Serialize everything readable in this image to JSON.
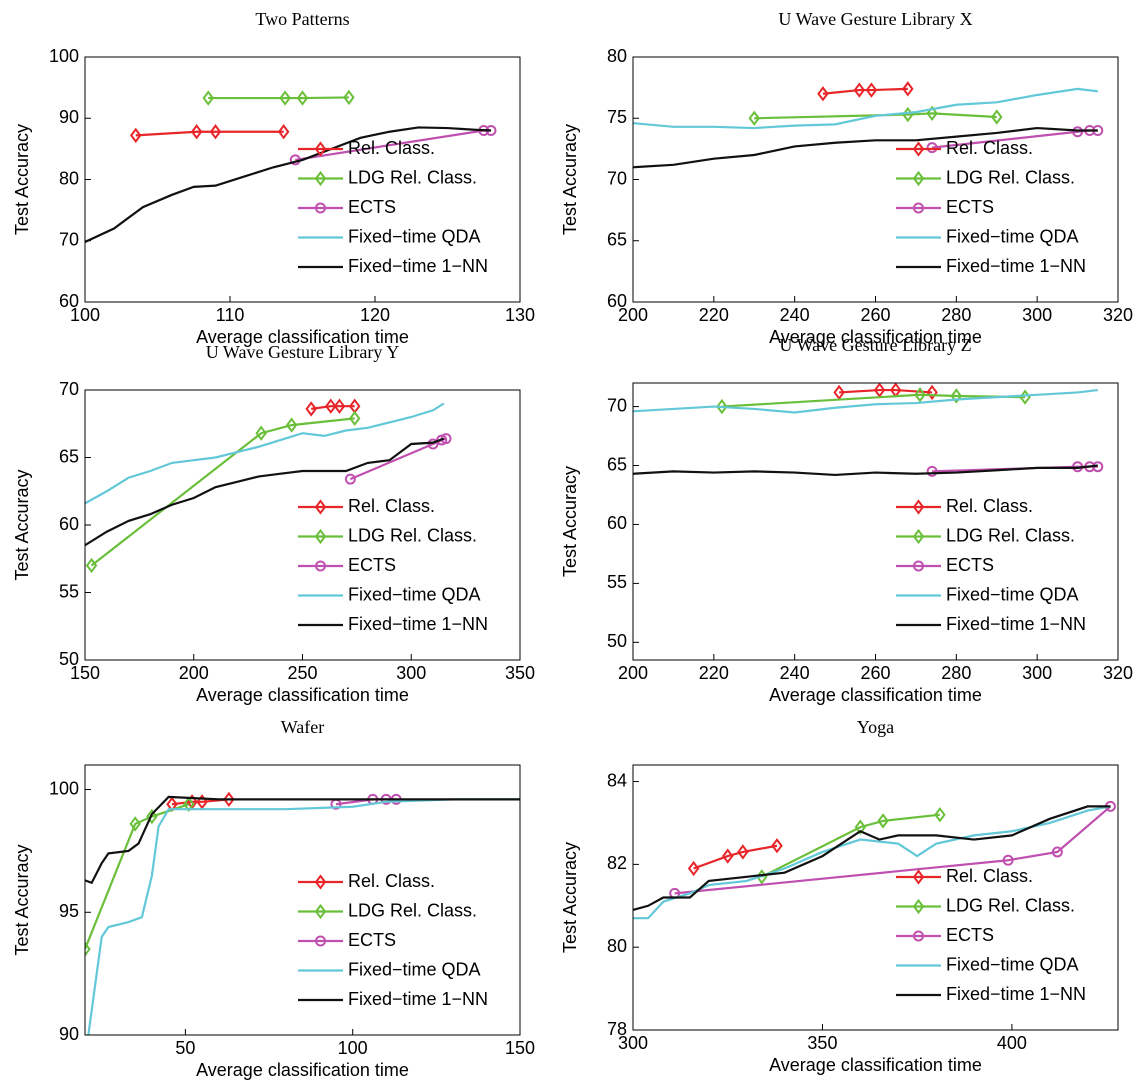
{
  "chart_data": [
    {
      "type": "line",
      "title": "Two Patterns",
      "x_label": "Average classification time",
      "y_label": "Test Accuracy",
      "xlim": [
        100,
        130
      ],
      "ylim": [
        60,
        100
      ],
      "xticks": [
        100,
        110,
        120,
        130
      ],
      "yticks": [
        60,
        70,
        80,
        90,
        100
      ],
      "legend": "lower right",
      "series": [
        {
          "name": "Rel. Class.",
          "color": "#e8262a",
          "marker": "diamond",
          "x": [
            103.5,
            107.7,
            109,
            113.7
          ],
          "values": [
            87.2,
            87.8,
            87.8,
            87.8
          ]
        },
        {
          "name": "LDG Rel. Class.",
          "color": "#6abf3a",
          "marker": "diamond",
          "x": [
            108.5,
            113.8,
            115,
            118.2
          ],
          "values": [
            93.3,
            93.3,
            93.3,
            93.4
          ]
        },
        {
          "name": "ECTS",
          "color": "#c050b0",
          "marker": "circle",
          "x": [
            114.5,
            127.5,
            128
          ],
          "values": [
            83.2,
            88,
            88
          ]
        },
        {
          "name": "Fixed−time QDA",
          "color": "#62c8d8",
          "x": [],
          "values": []
        },
        {
          "name": "Fixed−time 1−NN",
          "color": "#111111",
          "x": [
            100,
            102,
            104,
            106,
            107.5,
            109,
            111,
            113,
            115,
            117,
            119,
            121,
            123,
            125,
            127,
            128
          ],
          "values": [
            69.8,
            72,
            75.5,
            77.5,
            78.8,
            79,
            80.5,
            82,
            83.2,
            85,
            86.8,
            87.8,
            88.5,
            88.4,
            88.1,
            88
          ]
        }
      ]
    },
    {
      "type": "line",
      "title": "U Wave Gesture Library X",
      "x_label": "Average classification time",
      "y_label": "Test Accuracy",
      "xlim": [
        200,
        320
      ],
      "ylim": [
        60,
        80
      ],
      "xticks": [
        200,
        220,
        240,
        260,
        280,
        300,
        320
      ],
      "yticks": [
        60,
        65,
        70,
        75,
        80
      ],
      "legend": "lower right",
      "series": [
        {
          "name": "Rel. Class.",
          "color": "#e8262a",
          "marker": "diamond",
          "x": [
            247,
            256,
            259,
            268
          ],
          "values": [
            77,
            77.3,
            77.3,
            77.4
          ]
        },
        {
          "name": "LDG Rel. Class.",
          "color": "#6abf3a",
          "marker": "diamond",
          "x": [
            230,
            268,
            274,
            290
          ],
          "values": [
            75,
            75.3,
            75.4,
            75.1
          ]
        },
        {
          "name": "ECTS",
          "color": "#c050b0",
          "marker": "circle",
          "x": [
            274,
            310,
            313,
            315
          ],
          "values": [
            72.6,
            73.9,
            74,
            74
          ]
        },
        {
          "name": "Fixed−time QDA",
          "color": "#62c8d8",
          "x": [
            200,
            210,
            220,
            230,
            240,
            250,
            260,
            270,
            280,
            290,
            300,
            310,
            315
          ],
          "values": [
            74.6,
            74.3,
            74.3,
            74.2,
            74.4,
            74.5,
            75.2,
            75.5,
            76.1,
            76.3,
            76.9,
            77.4,
            77.2
          ]
        },
        {
          "name": "Fixed−time 1−NN",
          "color": "#111111",
          "x": [
            200,
            210,
            220,
            230,
            240,
            250,
            260,
            270,
            280,
            290,
            300,
            310,
            315
          ],
          "values": [
            71,
            71.2,
            71.7,
            72,
            72.7,
            73,
            73.2,
            73.2,
            73.5,
            73.8,
            74.2,
            74,
            74
          ]
        }
      ]
    },
    {
      "type": "line",
      "title": "U Wave Gesture Library Y",
      "x_label": "Average classification time",
      "y_label": "Test Accuracy",
      "xlim": [
        150,
        350
      ],
      "ylim": [
        50,
        70
      ],
      "xticks": [
        150,
        200,
        250,
        300,
        350
      ],
      "yticks": [
        50,
        55,
        60,
        65,
        70
      ],
      "legend": "lower right",
      "series": [
        {
          "name": "Rel. Class.",
          "color": "#e8262a",
          "marker": "diamond",
          "x": [
            254,
            263,
            267,
            274
          ],
          "values": [
            68.6,
            68.8,
            68.8,
            68.8
          ]
        },
        {
          "name": "LDG Rel. Class.",
          "color": "#6abf3a",
          "marker": "diamond",
          "x": [
            153,
            231,
            245,
            274
          ],
          "values": [
            57,
            66.8,
            67.4,
            67.9
          ]
        },
        {
          "name": "ECTS",
          "color": "#c050b0",
          "marker": "circle",
          "x": [
            272,
            310,
            314,
            316
          ],
          "values": [
            63.4,
            66,
            66.3,
            66.4
          ]
        },
        {
          "name": "Fixed−time QDA",
          "color": "#62c8d8",
          "x": [
            150,
            160,
            170,
            180,
            190,
            200,
            210,
            220,
            230,
            240,
            250,
            260,
            270,
            280,
            290,
            300,
            310,
            315
          ],
          "values": [
            61.6,
            62.5,
            63.5,
            64,
            64.6,
            64.8,
            65,
            65.4,
            65.8,
            66.3,
            66.8,
            66.6,
            67,
            67.2,
            67.6,
            68,
            68.5,
            69
          ]
        },
        {
          "name": "Fixed−time 1−NN",
          "color": "#111111",
          "x": [
            150,
            160,
            170,
            180,
            190,
            200,
            210,
            220,
            230,
            240,
            250,
            260,
            270,
            280,
            290,
            300,
            310,
            315
          ],
          "values": [
            58.5,
            59.5,
            60.3,
            60.8,
            61.5,
            62,
            62.8,
            63.2,
            63.6,
            63.8,
            64,
            64,
            64,
            64.6,
            64.8,
            66,
            66.1,
            66.4
          ]
        }
      ]
    },
    {
      "type": "line",
      "title": "U Wave Gesture Library Z",
      "x_label": "Average classification time",
      "y_label": "Test Accuracy",
      "xlim": [
        200,
        320
      ],
      "ylim": [
        48.5,
        72
      ],
      "xticks": [
        200,
        220,
        240,
        260,
        280,
        300,
        320
      ],
      "yticks": [
        50,
        55,
        60,
        65,
        70
      ],
      "legend": "lower right",
      "series": [
        {
          "name": "Rel. Class.",
          "color": "#e8262a",
          "marker": "diamond",
          "x": [
            251,
            261,
            265,
            274
          ],
          "values": [
            71.2,
            71.4,
            71.4,
            71.2
          ]
        },
        {
          "name": "LDG Rel. Class.",
          "color": "#6abf3a",
          "marker": "diamond",
          "x": [
            222,
            271,
            280,
            297
          ],
          "values": [
            70,
            71,
            70.9,
            70.8
          ]
        },
        {
          "name": "ECTS",
          "color": "#c050b0",
          "marker": "circle",
          "x": [
            274,
            310,
            313,
            315
          ],
          "values": [
            64.5,
            64.9,
            64.9,
            64.9
          ]
        },
        {
          "name": "Fixed−time QDA",
          "color": "#62c8d8",
          "x": [
            200,
            210,
            220,
            230,
            240,
            250,
            260,
            270,
            280,
            290,
            300,
            310,
            315
          ],
          "values": [
            69.6,
            69.8,
            70,
            69.8,
            69.5,
            69.9,
            70.2,
            70.3,
            70.6,
            70.8,
            71,
            71.2,
            71.4
          ]
        },
        {
          "name": "Fixed−time 1−NN",
          "color": "#111111",
          "x": [
            200,
            210,
            220,
            230,
            240,
            250,
            260,
            270,
            280,
            290,
            300,
            310,
            315
          ],
          "values": [
            64.3,
            64.5,
            64.4,
            64.5,
            64.4,
            64.2,
            64.4,
            64.3,
            64.4,
            64.6,
            64.8,
            64.8,
            65
          ]
        }
      ]
    },
    {
      "type": "line",
      "title": "Wafer",
      "x_label": "Average classification time",
      "y_label": "Test Accuracy",
      "xlim": [
        20,
        150
      ],
      "ylim": [
        90,
        101
      ],
      "xticks": [
        50,
        100,
        150
      ],
      "yticks": [
        90,
        95,
        100
      ],
      "legend": "lower right",
      "series": [
        {
          "name": "Rel. Class.",
          "color": "#e8262a",
          "marker": "diamond",
          "x": [
            46,
            52,
            55,
            63
          ],
          "values": [
            99.4,
            99.5,
            99.5,
            99.6
          ]
        },
        {
          "name": "LDG Rel. Class.",
          "color": "#6abf3a",
          "marker": "diamond",
          "x": [
            20,
            35,
            40,
            51
          ],
          "values": [
            93.5,
            98.6,
            98.9,
            99.4
          ]
        },
        {
          "name": "ECTS",
          "color": "#c050b0",
          "marker": "circle",
          "x": [
            95,
            106,
            110,
            113
          ],
          "values": [
            99.4,
            99.6,
            99.6,
            99.6
          ]
        },
        {
          "name": "Fixed−time QDA",
          "color": "#62c8d8",
          "x": [
            21,
            23,
            25,
            27,
            33,
            37,
            40,
            42,
            45,
            60,
            80,
            100,
            110,
            130,
            150
          ],
          "values": [
            90,
            92,
            94,
            94.4,
            94.6,
            94.8,
            96.5,
            98.5,
            99.2,
            99.2,
            99.2,
            99.3,
            99.5,
            99.6,
            99.6
          ]
        },
        {
          "name": "Fixed−time 1−NN",
          "color": "#111111",
          "x": [
            20,
            22,
            25,
            27,
            33,
            36,
            40,
            45,
            60,
            80,
            100,
            120,
            150
          ],
          "values": [
            96.3,
            96.2,
            97,
            97.4,
            97.5,
            97.8,
            99,
            99.7,
            99.6,
            99.6,
            99.6,
            99.6,
            99.6
          ]
        }
      ]
    },
    {
      "type": "line",
      "title": "Yoga",
      "x_label": "Average classification time",
      "y_label": "Test Accuracy",
      "xlim": [
        300,
        428
      ],
      "ylim": [
        78,
        84.4
      ],
      "xticks": [
        300,
        350,
        400
      ],
      "yticks": [
        78,
        80,
        82,
        84
      ],
      "legend": "lower right",
      "series": [
        {
          "name": "Rel. Class.",
          "color": "#e8262a",
          "marker": "diamond",
          "x": [
            316,
            325,
            329,
            338
          ],
          "values": [
            81.9,
            82.2,
            82.3,
            82.45
          ]
        },
        {
          "name": "LDG Rel. Class.",
          "color": "#6abf3a",
          "marker": "diamond",
          "x": [
            334,
            360,
            366,
            381
          ],
          "values": [
            81.7,
            82.9,
            83.05,
            83.2
          ]
        },
        {
          "name": "ECTS",
          "color": "#c050b0",
          "marker": "circle",
          "x": [
            311,
            399,
            412,
            426
          ],
          "values": [
            81.3,
            82.1,
            82.3,
            83.4
          ]
        },
        {
          "name": "Fixed−time QDA",
          "color": "#62c8d8",
          "x": [
            300,
            304,
            308,
            315,
            320,
            330,
            340,
            350,
            360,
            370,
            375,
            380,
            390,
            400,
            410,
            420,
            426
          ],
          "values": [
            80.7,
            80.7,
            81.1,
            81.3,
            81.5,
            81.6,
            81.9,
            82.3,
            82.6,
            82.5,
            82.2,
            82.5,
            82.7,
            82.8,
            83,
            83.3,
            83.4
          ]
        },
        {
          "name": "Fixed−time 1−NN",
          "color": "#111111",
          "x": [
            300,
            304,
            308,
            315,
            320,
            330,
            340,
            350,
            360,
            365,
            370,
            380,
            390,
            400,
            410,
            420,
            426
          ],
          "values": [
            80.9,
            81,
            81.2,
            81.2,
            81.6,
            81.7,
            81.8,
            82.2,
            82.8,
            82.6,
            82.7,
            82.7,
            82.6,
            82.7,
            83.1,
            83.4,
            83.4
          ]
        }
      ]
    }
  ]
}
